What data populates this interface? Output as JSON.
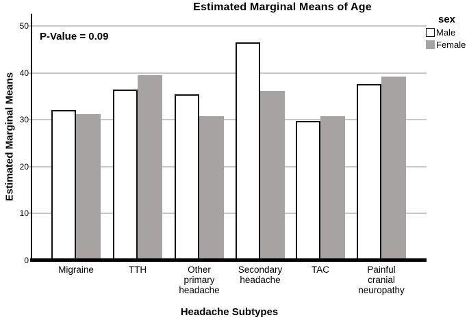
{
  "chart_data": {
    "type": "bar",
    "title": "Estimated Marginal Means of Age",
    "annotation": "P-Value = 0.09",
    "xlabel": "Headache Subtypes",
    "ylabel": "Estimated Marginal Means",
    "categories": [
      "Migraine",
      "TTH",
      "Other\nprimary\nheadache",
      "Secondary\nheadache",
      "TAC",
      "Painful\ncranial\nneuropathy"
    ],
    "series": [
      {
        "name": "Male",
        "values": [
          32.0,
          36.4,
          35.4,
          46.5,
          29.8,
          37.6
        ]
      },
      {
        "name": "Female",
        "values": [
          31.2,
          39.5,
          30.7,
          36.1,
          30.8,
          39.2
        ]
      }
    ],
    "yticks": [
      0,
      10,
      20,
      30,
      40,
      50
    ],
    "ylim": [
      0,
      52.6
    ],
    "grid": "horizontal",
    "legend_title": "sex",
    "legend_position": "top-right"
  },
  "colors": {
    "male_fill": "#ffffff",
    "male_border": "#111111",
    "female_fill": "#a7a3a3",
    "gridline": "#c9c8c8",
    "axis": "#000000",
    "text": "#000000"
  }
}
